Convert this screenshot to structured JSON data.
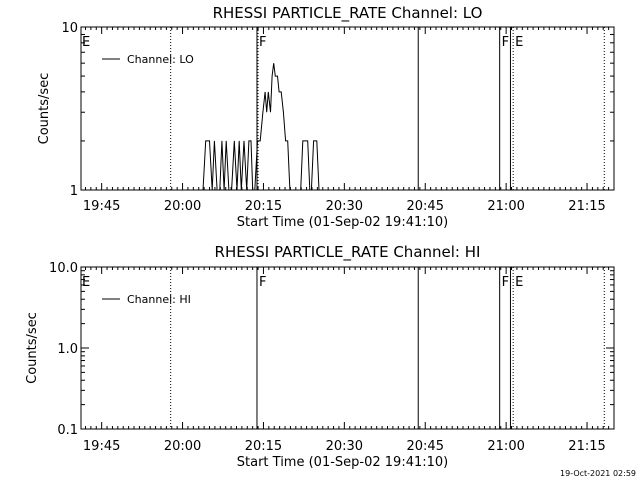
{
  "timestamp": "19-Oct-2021 02:59",
  "chart_data": [
    {
      "type": "line",
      "title": "RHESSI PARTICLE_RATE Channel: LO",
      "xlabel": "Start Time (01-Sep-02 19:41:10)",
      "ylabel": "Counts/sec",
      "yscale": "log",
      "ylim": [
        1,
        10
      ],
      "yticks": [
        "1",
        "10"
      ],
      "xlim_minutes": [
        1.17,
        100.0
      ],
      "xticks": [
        {
          "label": "19:45",
          "min": 5
        },
        {
          "label": "20:00",
          "min": 20
        },
        {
          "label": "20:15",
          "min": 35
        },
        {
          "label": "20:30",
          "min": 50
        },
        {
          "label": "20:45",
          "min": 65
        },
        {
          "label": "21:00",
          "min": 80
        },
        {
          "label": "21:15",
          "min": 95
        }
      ],
      "legend": {
        "label": "Channel: LO",
        "position": "top-left"
      },
      "markers": [
        {
          "min": 17.8,
          "style": "dotted",
          "label": ""
        },
        {
          "min": 33.8,
          "style": "solid",
          "label": "F"
        },
        {
          "min": 34.0,
          "style": "dotted",
          "label": ""
        },
        {
          "min": 63.7,
          "style": "solid",
          "label": ""
        },
        {
          "min": 78.8,
          "style": "solid",
          "label": "F"
        },
        {
          "min": 80.8,
          "style": "solid",
          "label": ""
        },
        {
          "min": 81.3,
          "style": "dotted",
          "label": "E"
        },
        {
          "min": 98.2,
          "style": "dotted",
          "label": ""
        }
      ],
      "edge_labels": [
        {
          "min": 1.17,
          "label": "E"
        }
      ],
      "series": [
        {
          "values": [
            [
              23.8,
              1
            ],
            [
              24.3,
              2
            ],
            [
              25.0,
              2
            ],
            [
              25.5,
              1
            ],
            [
              25.9,
              2
            ],
            [
              26.4,
              1
            ],
            [
              26.9,
              1
            ],
            [
              27.3,
              2
            ],
            [
              27.7,
              1
            ],
            [
              28.1,
              2
            ],
            [
              28.6,
              1
            ],
            [
              29.1,
              1
            ],
            [
              29.6,
              2
            ],
            [
              30.1,
              1
            ],
            [
              30.5,
              2
            ],
            [
              30.9,
              1
            ],
            [
              31.4,
              2
            ],
            [
              31.9,
              1
            ],
            [
              32.3,
              2
            ],
            [
              32.7,
              2
            ],
            [
              33.0,
              1
            ],
            [
              33.4,
              1
            ],
            [
              33.9,
              2
            ],
            [
              34.4,
              2
            ],
            [
              34.9,
              3
            ],
            [
              35.3,
              4
            ],
            [
              35.6,
              3
            ],
            [
              35.9,
              4
            ],
            [
              36.3,
              3
            ],
            [
              36.6,
              5
            ],
            [
              36.9,
              6
            ],
            [
              37.2,
              5
            ],
            [
              37.6,
              5
            ],
            [
              37.9,
              4
            ],
            [
              38.3,
              4
            ],
            [
              38.7,
              3
            ],
            [
              39.1,
              2
            ],
            [
              39.5,
              2
            ],
            [
              39.9,
              1
            ],
            [
              40.3,
              1
            ],
            [
              41.3,
              1
            ],
            [
              41.9,
              1
            ],
            [
              42.3,
              2
            ],
            [
              43.2,
              2
            ],
            [
              43.6,
              1
            ],
            [
              43.9,
              1
            ],
            [
              44.3,
              2
            ],
            [
              44.9,
              2
            ],
            [
              45.3,
              1
            ],
            [
              46.2,
              1
            ]
          ]
        }
      ]
    },
    {
      "type": "line",
      "title": "RHESSI PARTICLE_RATE Channel: HI",
      "xlabel": "Start Time (01-Sep-02 19:41:10)",
      "ylabel": "Counts/sec",
      "yscale": "log",
      "ylim": [
        0.1,
        10
      ],
      "yticks": [
        "0.1",
        "1.0",
        "10.0"
      ],
      "xlim_minutes": [
        1.17,
        100.0
      ],
      "xticks": [
        {
          "label": "19:45",
          "min": 5
        },
        {
          "label": "20:00",
          "min": 20
        },
        {
          "label": "20:15",
          "min": 35
        },
        {
          "label": "20:30",
          "min": 50
        },
        {
          "label": "20:45",
          "min": 65
        },
        {
          "label": "21:00",
          "min": 80
        },
        {
          "label": "21:15",
          "min": 95
        }
      ],
      "legend": {
        "label": "Channel: HI",
        "position": "top-left"
      },
      "markers": [
        {
          "min": 17.8,
          "style": "dotted",
          "label": ""
        },
        {
          "min": 33.8,
          "style": "solid",
          "label": "F"
        },
        {
          "min": 63.7,
          "style": "solid",
          "label": ""
        },
        {
          "min": 78.8,
          "style": "solid",
          "label": "F"
        },
        {
          "min": 80.8,
          "style": "solid",
          "label": ""
        },
        {
          "min": 81.3,
          "style": "dotted",
          "label": "E"
        },
        {
          "min": 98.2,
          "style": "dotted",
          "label": ""
        }
      ],
      "edge_labels": [
        {
          "min": 1.17,
          "label": "E"
        }
      ],
      "series": [
        {
          "values": []
        }
      ]
    }
  ]
}
